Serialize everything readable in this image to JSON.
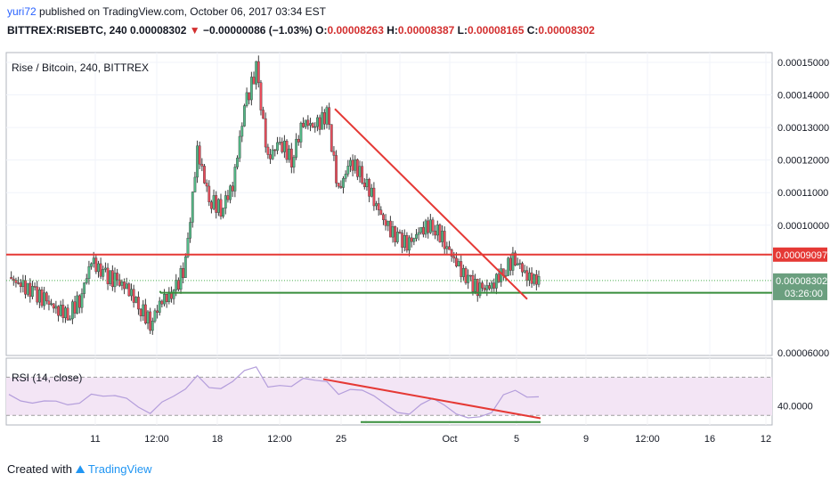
{
  "header": {
    "user": "yuri72",
    "published_text": "published on TradingView.com, October 06, 2017 03:34 EST",
    "symbol": "BITTREX:RISEBTC, 240",
    "last": "0.00008302",
    "arrow": "▼",
    "change": "−0.00000086 (−1.03%)",
    "o_label": "O:",
    "o_value": "0.00008263",
    "h_label": "H:",
    "h_value": "0.00008387",
    "l_label": "L:",
    "l_value": "0.00008165",
    "c_label": "C:",
    "c_value": "0.00008302"
  },
  "footer": {
    "created": "Created with",
    "brand": "TradingView"
  },
  "chart_data": [
    {
      "type": "candlestick",
      "title": "Rise / Bitcoin, 240, BITTREX",
      "x_tick_labels": [
        "11",
        "12:00",
        "18",
        "12:00",
        "25",
        "Oct",
        "5",
        "9",
        "12:00",
        "16",
        "12"
      ],
      "y_tick_labels": [
        "0.00015000",
        "0.00014000",
        "0.00013000",
        "0.00012000",
        "0.00011000",
        "0.00010000",
        "0.00006000"
      ],
      "ylim": [
        6e-05,
        0.000153
      ],
      "colors": {
        "up": "#53b987",
        "down": "#eb4d5c",
        "resistance": "#e53935",
        "support": "#388e3c",
        "trend": "#e53935",
        "rsi_line": "#b39ddb",
        "rsi_band": "#f3e5f5"
      },
      "horizontal_levels": [
        {
          "label": "0.00009097",
          "value": 9.097e-05,
          "color": "#e53935"
        },
        {
          "label": "0.00007924",
          "value": 7.924e-05,
          "color": "#388e3c"
        }
      ],
      "last_price": {
        "label": "0.00008302",
        "value": 8.302e-05,
        "countdown": "03:26:00"
      },
      "trend_line": {
        "from_value": 0.0001357,
        "to_value": 7.73e-05
      },
      "approx_close_path": [
        8.4e-05,
        8.15e-05,
        7.95e-05,
        7.7e-05,
        7.45e-05,
        7.25e-05,
        7.7e-05,
        8.9e-05,
        8.5e-05,
        8.3e-05,
        8.1e-05,
        7.55e-05,
        7e-05,
        7.7e-05,
        7.9e-05,
        8.8e-05,
        0.000123,
        0.000108,
        0.000105,
        0.000112,
        0.000136,
        0.000148,
        0.00012,
        0.000126,
        0.00012,
        0.000132,
        0.00013,
        0.000134,
        0.00011,
        0.00012,
        0.000115,
        0.000108,
        0.0001,
        9.6e-05,
        9.4e-05,
        9.9e-05,
        0.0001,
        9.5e-05,
        8.8e-05,
        8.3e-05,
        8e-05,
        8.15e-05,
        8.6e-05,
        9e-05,
        8.4e-05,
        8.3e-05
      ]
    },
    {
      "type": "line",
      "title": "RSI (14, close)",
      "y_tick_labels": [
        "40.0000"
      ],
      "ylim": [
        20,
        90
      ],
      "band": [
        30,
        70
      ],
      "trend_line": {
        "from_value": 68,
        "to_value": 27
      },
      "support_line": {
        "value": 23
      },
      "approx_values": [
        52,
        48,
        45,
        44,
        42,
        40,
        45,
        55,
        50,
        48,
        46,
        40,
        35,
        45,
        48,
        55,
        72,
        62,
        60,
        64,
        74,
        80,
        62,
        64,
        60,
        66,
        65,
        67,
        55,
        58,
        54,
        48,
        42,
        36,
        33,
        40,
        45,
        40,
        34,
        30,
        28,
        30,
        50,
        58,
        52,
        50
      ]
    }
  ]
}
